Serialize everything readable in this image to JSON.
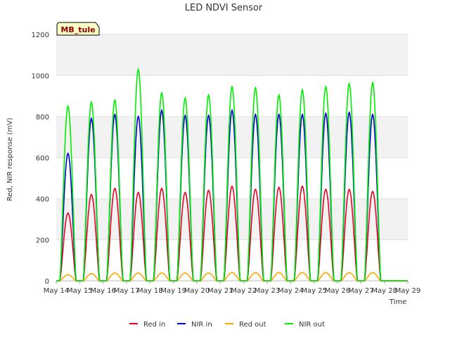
{
  "chart_data": {
    "type": "line",
    "title": "LED NDVI Sensor",
    "xlabel": "Time",
    "ylabel": "Red, NIR response (mV)",
    "ylim": [
      0,
      1200
    ],
    "yticks": [
      0,
      200,
      400,
      600,
      800,
      1000,
      1200
    ],
    "xlim": [
      "May 14",
      "May 29"
    ],
    "xticks": [
      "May 14",
      "May 15",
      "May 16",
      "May 17",
      "May 18",
      "May 19",
      "May 20",
      "May 21",
      "May 22",
      "May 23",
      "May 24",
      "May 25",
      "May 26",
      "May 27",
      "May 28",
      "May 29"
    ],
    "grid": "horizontal bands",
    "legend_position": "bottom",
    "badge": "MB_tule",
    "x_unit": "day",
    "x_start": "May 14",
    "days": [
      "May 14",
      "May 15",
      "May 16",
      "May 17",
      "May 18",
      "May 19",
      "May 20",
      "May 21",
      "May 22",
      "May 23",
      "May 24",
      "May 25",
      "May 26",
      "May 27",
      "May 28"
    ],
    "series": [
      {
        "name": "Red in",
        "color": "#e8001c",
        "daily_peak": [
          330,
          420,
          450,
          430,
          450,
          430,
          440,
          460,
          445,
          455,
          460,
          445,
          445,
          435,
          0
        ]
      },
      {
        "name": "NIR in",
        "color": "#0000cc",
        "daily_peak": [
          620,
          790,
          810,
          800,
          830,
          805,
          805,
          830,
          810,
          810,
          810,
          815,
          820,
          810,
          0
        ]
      },
      {
        "name": "Red out",
        "color": "#ffa500",
        "daily_peak": [
          30,
          35,
          38,
          38,
          38,
          38,
          38,
          40,
          40,
          40,
          40,
          40,
          40,
          40,
          0
        ]
      },
      {
        "name": "NIR out",
        "color": "#00ee00",
        "daily_peak": [
          850,
          870,
          880,
          1030,
          915,
          890,
          905,
          945,
          940,
          905,
          930,
          945,
          960,
          965,
          0
        ]
      }
    ]
  }
}
